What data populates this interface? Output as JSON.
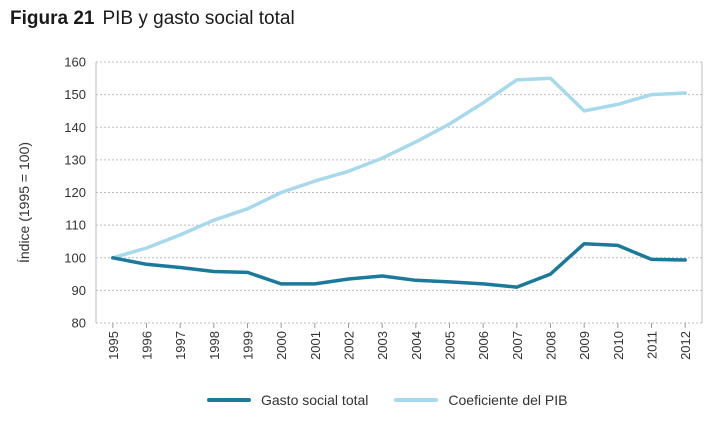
{
  "figure": {
    "label": "Figura 21",
    "title": "PIB y gasto social total"
  },
  "chart_data": {
    "type": "line",
    "x": [
      "1995",
      "1996",
      "1997",
      "1998",
      "1999",
      "2000",
      "2001",
      "2002",
      "2003",
      "2004",
      "2005",
      "2006",
      "2007",
      "2008",
      "2009",
      "2010",
      "2011",
      "2012"
    ],
    "series": [
      {
        "name": "Gasto social total",
        "color": "#1b7a9c",
        "values": [
          100,
          98,
          97,
          95.8,
          95.5,
          92,
          92,
          93.5,
          94.4,
          93.1,
          92.6,
          92,
          91,
          95,
          104.3,
          103.8,
          99.5,
          99.3
        ]
      },
      {
        "name": "Coeficiente del PIB",
        "color": "#a6d9ec",
        "values": [
          100,
          103,
          107,
          111.5,
          115,
          120,
          123.5,
          126.5,
          130.5,
          135.5,
          141,
          147.5,
          154.5,
          155,
          145,
          147,
          150,
          150.5
        ]
      }
    ],
    "ylabel": "Índice (1995 = 100)",
    "xlabel": "",
    "ylim": [
      80,
      160
    ],
    "yticks": [
      80,
      90,
      100,
      110,
      120,
      130,
      140,
      150,
      160
    ],
    "grid": true,
    "legend_position": "bottom"
  }
}
